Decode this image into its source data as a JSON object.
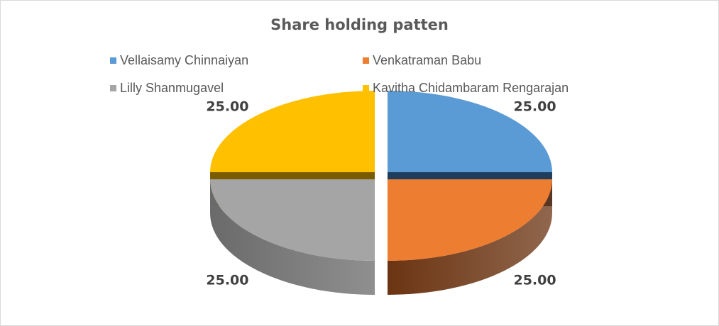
{
  "chart_data": {
    "type": "pie",
    "style": "3d-exploded",
    "title": "Share holding patten",
    "legend_placement": "top",
    "slices": [
      {
        "label": "Vellaisamy Chinnaiyan",
        "value": 25.0,
        "display": "25.00",
        "color": "#5b9bd5",
        "side": "#1f3d5c"
      },
      {
        "label": "Venkatraman Babu",
        "value": 25.0,
        "display": "25.00",
        "color": "#ed7d31",
        "side": "#6b3412"
      },
      {
        "label": "Lilly Shanmugavel",
        "value": 25.0,
        "display": "25.00",
        "color": "#a5a5a5",
        "side": "#6a6a6a"
      },
      {
        "label": "Kavitha Chidambaram Rengarajan",
        "value": 25.0,
        "display": "25.00",
        "color": "#ffc000",
        "side": "#7a5c00"
      }
    ]
  }
}
